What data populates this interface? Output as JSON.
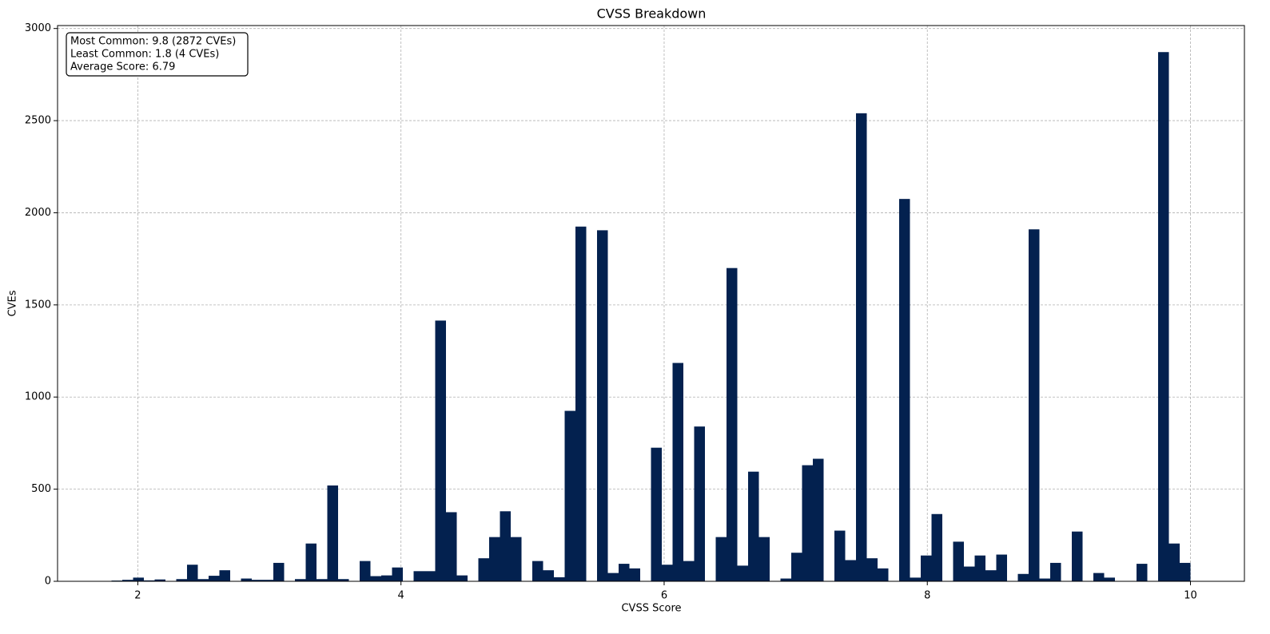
{
  "chart_data": {
    "type": "histogram",
    "title": "CVSS Breakdown",
    "x_label": "CVSS Score",
    "y_label": "CVEs",
    "annotations": [
      "Most Common: 9.8 (2872 CVEs)",
      "Least Common: 1.8 (4 CVEs)",
      "Average Score: 6.79"
    ],
    "bins": [
      1.8,
      1.882,
      1.964,
      2.046,
      2.128,
      2.21,
      2.292,
      2.374,
      2.456,
      2.538,
      2.62,
      2.702,
      2.784,
      2.866,
      2.948,
      3.03,
      3.112,
      3.194,
      3.276,
      3.358,
      3.44,
      3.522,
      3.604,
      3.686,
      3.768,
      3.85,
      3.932,
      4.014,
      4.096,
      4.178,
      4.26,
      4.342,
      4.424,
      4.506,
      4.588,
      4.67,
      4.752,
      4.834,
      4.916,
      4.998,
      5.08,
      5.162,
      5.244,
      5.326,
      5.408,
      5.49,
      5.572,
      5.654,
      5.736,
      5.818,
      5.9,
      5.982,
      6.064,
      6.146,
      6.228,
      6.31,
      6.392,
      6.474,
      6.556,
      6.638,
      6.72,
      6.802,
      6.884,
      6.966,
      7.048,
      7.13,
      7.212,
      7.294,
      7.376,
      7.458,
      7.54,
      7.622,
      7.704,
      7.786,
      7.868,
      7.95,
      8.032,
      8.114,
      8.196,
      8.278,
      8.36,
      8.442,
      8.524,
      8.606,
      8.688,
      8.77,
      8.852,
      8.934,
      9.016,
      9.098,
      9.18,
      9.262,
      9.344,
      9.426,
      9.508,
      9.59,
      9.672,
      9.754,
      9.836,
      9.918,
      10.0
    ],
    "values": [
      4,
      8,
      20,
      5,
      10,
      0,
      12,
      90,
      12,
      30,
      60,
      0,
      15,
      8,
      8,
      100,
      0,
      12,
      205,
      12,
      520,
      12,
      0,
      110,
      28,
      32,
      75,
      0,
      55,
      55,
      1415,
      375,
      32,
      0,
      125,
      240,
      380,
      240,
      0,
      110,
      60,
      22,
      925,
      1925,
      0,
      1905,
      45,
      95,
      70,
      0,
      725,
      90,
      1185,
      110,
      840,
      0,
      240,
      1700,
      85,
      595,
      240,
      0,
      15,
      155,
      630,
      665,
      0,
      275,
      115,
      2540,
      125,
      70,
      0,
      2075,
      20,
      140,
      365,
      0,
      215,
      80,
      140,
      60,
      145,
      0,
      40,
      1910,
      15,
      100,
      0,
      270,
      0,
      45,
      20,
      0,
      0,
      95,
      0,
      2872,
      205,
      100
    ],
    "color": "#03214f",
    "xlim": [
      1.39,
      10.41
    ],
    "xticks": [
      2,
      4,
      6,
      8,
      10
    ],
    "ylim": [
      0,
      3016
    ],
    "yticks": [
      0,
      500,
      1000,
      1500,
      2000,
      2500,
      3000
    ],
    "grid": true
  }
}
